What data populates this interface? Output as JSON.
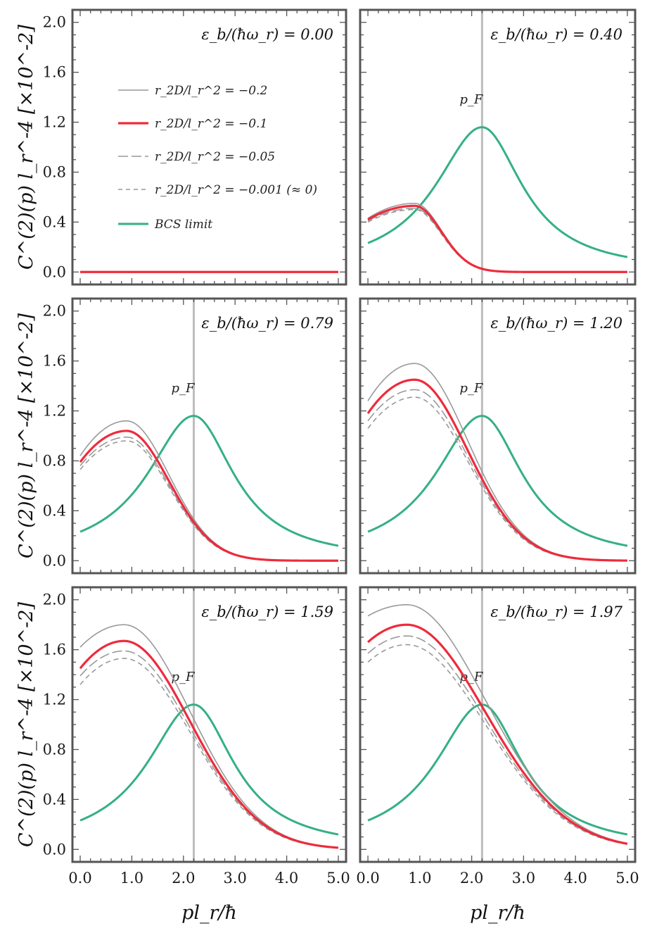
{
  "chart_data": {
    "type": "line",
    "xlabel": "pl_r/ħ",
    "ylabel": "C^(2)(p) l_r^-4 [×10^-2]",
    "xlim": [
      -0.15,
      5.15
    ],
    "ylim": [
      -0.1,
      2.1
    ],
    "x_ticks": [
      "0.0",
      "1.0",
      "2.0",
      "3.0",
      "4.0",
      "5.0"
    ],
    "y_ticks": [
      "0.0",
      "0.4",
      "0.8",
      "1.2",
      "1.6",
      "2.0"
    ],
    "p_F": 2.2,
    "p_F_label": "p_F",
    "legend": [
      {
        "label": "r_2D/l_r^2 = −0.2",
        "color": "#999999",
        "style": "solid-thin"
      },
      {
        "label": "r_2D/l_r^2 = −0.1",
        "color": "#ee2b3c",
        "style": "solid-thick"
      },
      {
        "label": "r_2D/l_r^2 = −0.05",
        "color": "#999999",
        "style": "long-dash"
      },
      {
        "label": "r_2D/l_r^2 = −0.001 (≈ 0)",
        "color": "#999999",
        "style": "dash"
      },
      {
        "label": "BCS limit",
        "color": "#35b083",
        "style": "solid-thick"
      }
    ],
    "panels": [
      {
        "label": "ε_b/(ħω_r) = 0.00",
        "show_pf": false,
        "series": [
          {
            "name": "r_2D/l_r^2 = −0.2",
            "amp": 0.0,
            "c0": 0.0,
            "xp": 0.9,
            "w": 1.15,
            "base": 0.0
          },
          {
            "name": "r_2D/l_r^2 = −0.05",
            "amp": 0.0,
            "c0": 0.0,
            "xp": 0.9,
            "w": 1.15,
            "base": 0.0
          },
          {
            "name": "r_2D/l_r^2 = −0.001 (≈ 0)",
            "amp": 0.0,
            "c0": 0.0,
            "xp": 0.9,
            "w": 1.15,
            "base": 0.0
          },
          {
            "name": "r_2D/l_r^2 = −0.1",
            "amp": 0.0,
            "c0": 0.0,
            "xp": 0.9,
            "w": 1.15,
            "base": 0.0
          }
        ]
      },
      {
        "label": "ε_b/(ħω_r) = 0.40",
        "show_pf": true,
        "series": [
          {
            "name": "BCS limit",
            "bcs": true
          },
          {
            "name": "r_2D/l_r^2 = −0.2",
            "amp": 0.55,
            "c0": 0.43,
            "xp": 0.9,
            "w": 0.78,
            "base": 0.0
          },
          {
            "name": "r_2D/l_r^2 = −0.05",
            "amp": 0.51,
            "c0": 0.41,
            "xp": 0.9,
            "w": 0.78,
            "base": 0.0
          },
          {
            "name": "r_2D/l_r^2 = −0.001 (≈ 0)",
            "amp": 0.5,
            "c0": 0.4,
            "xp": 0.9,
            "w": 0.78,
            "base": 0.0
          },
          {
            "name": "r_2D/l_r^2 = −0.1",
            "amp": 0.53,
            "c0": 0.42,
            "xp": 0.9,
            "w": 0.78,
            "base": 0.0
          }
        ]
      },
      {
        "label": "ε_b/(ħω_r) = 0.79",
        "show_pf": true,
        "series": [
          {
            "name": "BCS limit",
            "bcs": true
          },
          {
            "name": "r_2D/l_r^2 = −0.2",
            "amp": 1.12,
            "c0": 0.84,
            "xp": 0.9,
            "w": 1.25,
            "base": 0.0
          },
          {
            "name": "r_2D/l_r^2 = −0.05",
            "amp": 0.99,
            "c0": 0.76,
            "xp": 0.9,
            "w": 1.25,
            "base": 0.0
          },
          {
            "name": "r_2D/l_r^2 = −0.001 (≈ 0)",
            "amp": 0.96,
            "c0": 0.73,
            "xp": 0.9,
            "w": 1.25,
            "base": 0.0
          },
          {
            "name": "r_2D/l_r^2 = −0.1",
            "amp": 1.04,
            "c0": 0.79,
            "xp": 0.9,
            "w": 1.25,
            "base": 0.0
          }
        ]
      },
      {
        "label": "ε_b/(ħω_r) = 1.20",
        "show_pf": true,
        "series": [
          {
            "name": "BCS limit",
            "bcs": true
          },
          {
            "name": "r_2D/l_r^2 = −0.2",
            "amp": 1.58,
            "c0": 1.28,
            "xp": 0.9,
            "w": 1.55,
            "base": 0.0
          },
          {
            "name": "r_2D/l_r^2 = −0.05",
            "amp": 1.37,
            "c0": 1.12,
            "xp": 0.9,
            "w": 1.55,
            "base": 0.0
          },
          {
            "name": "r_2D/l_r^2 = −0.001 (≈ 0)",
            "amp": 1.31,
            "c0": 1.06,
            "xp": 0.9,
            "w": 1.55,
            "base": 0.0
          },
          {
            "name": "r_2D/l_r^2 = −0.1",
            "amp": 1.45,
            "c0": 1.18,
            "xp": 0.9,
            "w": 1.55,
            "base": 0.0
          }
        ]
      },
      {
        "label": "ε_b/(ħω_r) = 1.59",
        "show_pf": true,
        "series": [
          {
            "name": "BCS limit",
            "bcs": true
          },
          {
            "name": "r_2D/l_r^2 = −0.2",
            "amp": 1.8,
            "c0": 1.62,
            "xp": 0.85,
            "w": 1.95,
            "base": 0.0
          },
          {
            "name": "r_2D/l_r^2 = −0.05",
            "amp": 1.59,
            "c0": 1.39,
            "xp": 0.85,
            "w": 1.95,
            "base": 0.0
          },
          {
            "name": "r_2D/l_r^2 = −0.001 (≈ 0)",
            "amp": 1.53,
            "c0": 1.32,
            "xp": 0.85,
            "w": 1.95,
            "base": 0.0
          },
          {
            "name": "r_2D/l_r^2 = −0.1",
            "amp": 1.67,
            "c0": 1.45,
            "xp": 0.85,
            "w": 1.95,
            "base": 0.0
          }
        ]
      },
      {
        "label": "ε_b/(ħω_r) = 1.97",
        "show_pf": true,
        "series": [
          {
            "name": "BCS limit",
            "bcs": true
          },
          {
            "name": "r_2D/l_r^2 = −0.2",
            "amp": 1.96,
            "c0": 1.87,
            "xp": 0.75,
            "w": 2.3,
            "base": 0.0
          },
          {
            "name": "r_2D/l_r^2 = −0.05",
            "amp": 1.71,
            "c0": 1.57,
            "xp": 0.75,
            "w": 2.3,
            "base": 0.0
          },
          {
            "name": "r_2D/l_r^2 = −0.001 (≈ 0)",
            "amp": 1.64,
            "c0": 1.5,
            "xp": 0.75,
            "w": 2.3,
            "base": 0.0
          },
          {
            "name": "r_2D/l_r^2 = −0.1",
            "amp": 1.8,
            "c0": 1.66,
            "xp": 0.75,
            "w": 2.3,
            "base": 0.0
          }
        ]
      }
    ],
    "bcs_curve": {
      "peak_x": 2.2,
      "peak_y": 1.16,
      "widths": [
        1.1,
        0.95
      ],
      "note": "same in all panels except panel 1"
    }
  }
}
